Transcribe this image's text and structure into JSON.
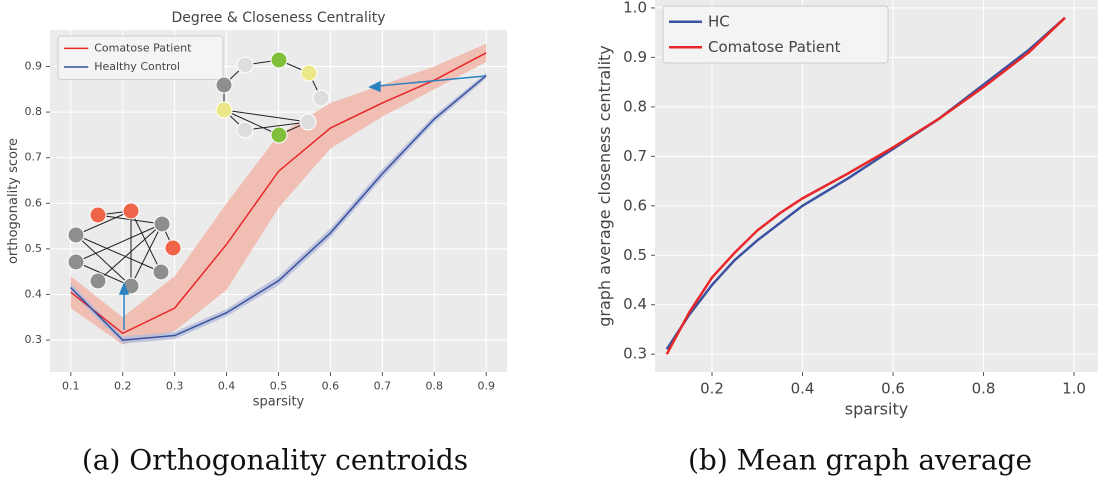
{
  "chart_data": [
    {
      "type": "line",
      "title": "Degree & Closeness Centrality",
      "caption": "(a) Orthogonality centroids",
      "xlabel": "sparsity",
      "ylabel": "orthogonality score",
      "x": [
        0.1,
        0.2,
        0.3,
        0.4,
        0.5,
        0.6,
        0.7,
        0.8,
        0.9
      ],
      "series": [
        {
          "name": "Comatose Patient",
          "color": "#e8272a",
          "band_color": "#f3b3a6",
          "values": [
            0.405,
            0.315,
            0.37,
            0.51,
            0.67,
            0.765,
            0.82,
            0.87,
            0.93
          ],
          "lower": [
            0.37,
            0.29,
            0.32,
            0.41,
            0.59,
            0.72,
            0.79,
            0.85,
            0.91
          ],
          "upper": [
            0.44,
            0.35,
            0.44,
            0.6,
            0.75,
            0.82,
            0.86,
            0.9,
            0.95
          ]
        },
        {
          "name": "Healthy Control",
          "color": "#3a52a0",
          "band_color": "#b4bcd9",
          "values": [
            0.415,
            0.3,
            0.31,
            0.36,
            0.43,
            0.535,
            0.665,
            0.785,
            0.88
          ],
          "lower": [
            0.405,
            0.292,
            0.302,
            0.352,
            0.42,
            0.525,
            0.655,
            0.777,
            0.874
          ],
          "upper": [
            0.425,
            0.308,
            0.318,
            0.368,
            0.44,
            0.545,
            0.675,
            0.793,
            0.886
          ]
        }
      ],
      "xlim": [
        0.06,
        0.94
      ],
      "ylim": [
        0.23,
        0.98
      ],
      "xticks": [
        0.1,
        0.2,
        0.3,
        0.4,
        0.5,
        0.6,
        0.7,
        0.8,
        0.9
      ],
      "yticks": [
        0.3,
        0.4,
        0.5,
        0.6,
        0.7,
        0.8,
        0.9
      ],
      "grid": true,
      "legend": "upper left"
    },
    {
      "type": "line",
      "caption": "(b) Mean graph average",
      "xlabel": "sparsity",
      "ylabel": "graph average closeness centrality",
      "x": [
        0.1,
        0.15,
        0.2,
        0.25,
        0.3,
        0.35,
        0.4,
        0.5,
        0.6,
        0.7,
        0.8,
        0.9,
        0.98
      ],
      "series": [
        {
          "name": "HC",
          "color": "#3a52a0",
          "values": [
            0.31,
            0.38,
            0.44,
            0.49,
            0.53,
            0.565,
            0.6,
            0.655,
            0.715,
            0.775,
            0.845,
            0.915,
            0.98
          ]
        },
        {
          "name": "Comatose Patient",
          "color": "#e8272a",
          "values": [
            0.3,
            0.385,
            0.455,
            0.505,
            0.55,
            0.585,
            0.615,
            0.665,
            0.718,
            0.775,
            0.84,
            0.91,
            0.98
          ]
        }
      ],
      "xlim": [
        0.074,
        1.053
      ],
      "ylim": [
        0.264,
        1.016
      ],
      "xticks": [
        0.2,
        0.4,
        0.6,
        0.8,
        {
          "value": 1,
          "label": "1.0"
        }
      ],
      "yticks": [
        0.3,
        0.4,
        0.5,
        0.6,
        0.7,
        0.8,
        0.9,
        {
          "value": 1,
          "label": "1.0"
        }
      ],
      "grid": true,
      "legend": "upper left"
    }
  ]
}
